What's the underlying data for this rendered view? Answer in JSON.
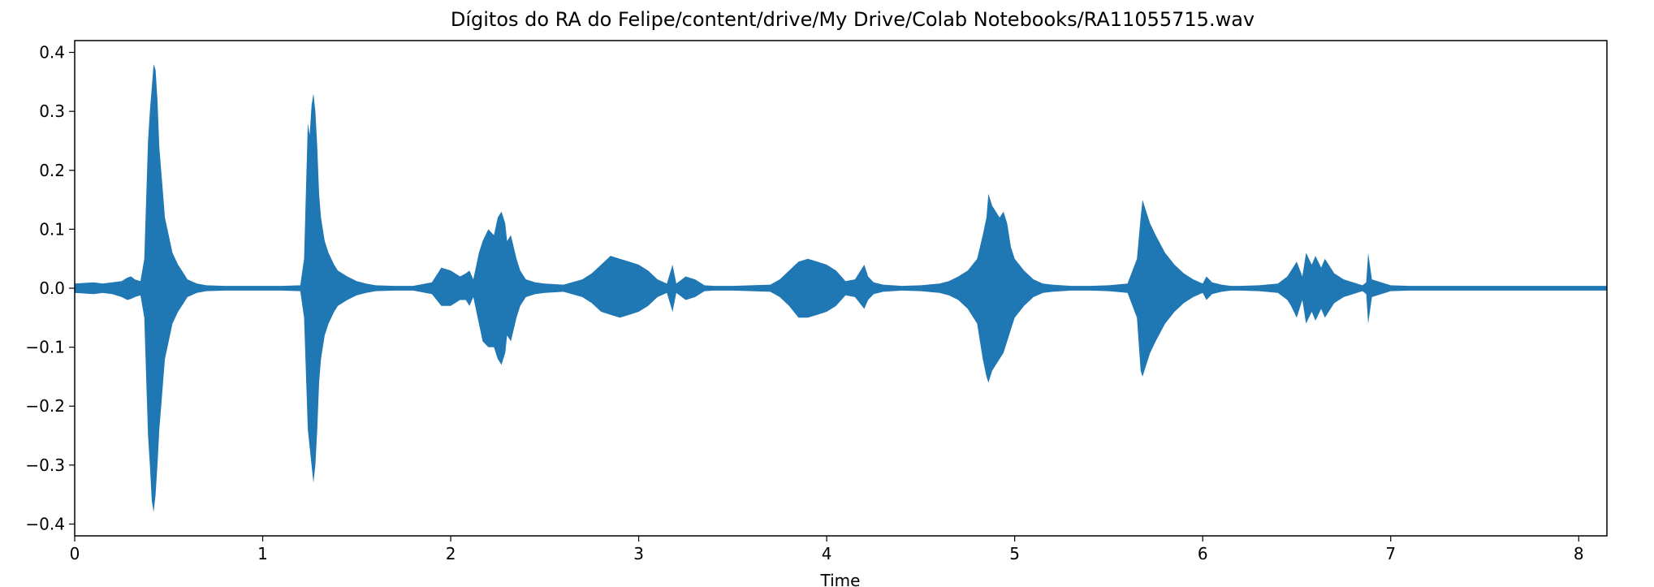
{
  "chart_data": {
    "type": "area",
    "title": "Dígitos do RA do Felipe/content/drive/My Drive/Colab Notebooks/RA11055715.wav",
    "xlabel": "Time",
    "ylabel": "",
    "xlim": [
      0,
      8.15
    ],
    "ylim": [
      -0.42,
      0.42
    ],
    "grid": false,
    "color": "#1f77b4",
    "xticks": [
      {
        "value": 0,
        "label": "0"
      },
      {
        "value": 1,
        "label": "1"
      },
      {
        "value": 2,
        "label": "2"
      },
      {
        "value": 3,
        "label": "3"
      },
      {
        "value": 4,
        "label": "4"
      },
      {
        "value": 5,
        "label": "5"
      },
      {
        "value": 6,
        "label": "6"
      },
      {
        "value": 7,
        "label": "7"
      },
      {
        "value": 8,
        "label": "8"
      }
    ],
    "yticks": [
      {
        "value": 0.4,
        "label": "0.4"
      },
      {
        "value": 0.3,
        "label": "0.3"
      },
      {
        "value": 0.2,
        "label": "0.2"
      },
      {
        "value": 0.1,
        "label": "0.1"
      },
      {
        "value": 0.0,
        "label": "0.0"
      },
      {
        "value": -0.1,
        "label": "−0.1"
      },
      {
        "value": -0.2,
        "label": "−0.2"
      },
      {
        "value": -0.3,
        "label": "−0.3"
      },
      {
        "value": -0.4,
        "label": "−0.4"
      }
    ],
    "series": [
      {
        "x": [
          0,
          0.05,
          0.1,
          0.15,
          0.2,
          0.25,
          0.28,
          0.3,
          0.32,
          0.35,
          0.37,
          0.38,
          0.39,
          0.4,
          0.41,
          0.42,
          0.43,
          0.44,
          0.45,
          0.46,
          0.47,
          0.48,
          0.5,
          0.52,
          0.55,
          0.58,
          0.6,
          0.65,
          0.7,
          0.8,
          0.9,
          1.0,
          1.1,
          1.2,
          1.22,
          1.24,
          1.25,
          1.26,
          1.27,
          1.28,
          1.29,
          1.3,
          1.31,
          1.32,
          1.33,
          1.35,
          1.38,
          1.4,
          1.45,
          1.5,
          1.55,
          1.6,
          1.7,
          1.8,
          1.9,
          1.95,
          2.0,
          2.05,
          2.08,
          2.1,
          2.12,
          2.15,
          2.17,
          2.2,
          2.23,
          2.25,
          2.27,
          2.29,
          2.3,
          2.32,
          2.35,
          2.37,
          2.4,
          2.45,
          2.5,
          2.6,
          2.7,
          2.75,
          2.8,
          2.85,
          2.9,
          2.95,
          3.0,
          3.05,
          3.1,
          3.15,
          3.18,
          3.2,
          3.25,
          3.3,
          3.35,
          3.4,
          3.5,
          3.6,
          3.7,
          3.75,
          3.8,
          3.85,
          3.9,
          3.95,
          4.0,
          4.05,
          4.1,
          4.15,
          4.2,
          4.22,
          4.25,
          4.3,
          4.4,
          4.5,
          4.6,
          4.65,
          4.7,
          4.75,
          4.8,
          4.83,
          4.85,
          4.86,
          4.88,
          4.9,
          4.92,
          4.94,
          4.96,
          4.98,
          5.0,
          5.05,
          5.1,
          5.15,
          5.2,
          5.3,
          5.4,
          5.5,
          5.6,
          5.65,
          5.67,
          5.68,
          5.7,
          5.72,
          5.75,
          5.8,
          5.85,
          5.9,
          5.95,
          6.0,
          6.02,
          6.05,
          6.1,
          6.15,
          6.2,
          6.3,
          6.4,
          6.45,
          6.47,
          6.5,
          6.53,
          6.55,
          6.58,
          6.6,
          6.63,
          6.65,
          6.7,
          6.75,
          6.8,
          6.85,
          6.87,
          6.88,
          6.9,
          6.95,
          7.0,
          7.1,
          7.2,
          7.3,
          7.4,
          7.5,
          7.6,
          7.7,
          7.8,
          7.9,
          8.0,
          8.1,
          8.15
        ],
        "y_max": [
          0.008,
          0.009,
          0.01,
          0.008,
          0.01,
          0.012,
          0.018,
          0.02,
          0.015,
          0.012,
          0.05,
          0.15,
          0.25,
          0.3,
          0.34,
          0.38,
          0.37,
          0.32,
          0.24,
          0.2,
          0.16,
          0.12,
          0.09,
          0.06,
          0.04,
          0.025,
          0.015,
          0.008,
          0.005,
          0.004,
          0.004,
          0.004,
          0.004,
          0.005,
          0.05,
          0.28,
          0.26,
          0.31,
          0.33,
          0.3,
          0.24,
          0.16,
          0.12,
          0.1,
          0.08,
          0.06,
          0.04,
          0.03,
          0.02,
          0.012,
          0.008,
          0.005,
          0.004,
          0.004,
          0.01,
          0.035,
          0.03,
          0.02,
          0.025,
          0.03,
          0.015,
          0.06,
          0.08,
          0.1,
          0.09,
          0.12,
          0.13,
          0.11,
          0.08,
          0.09,
          0.05,
          0.03,
          0.015,
          0.01,
          0.008,
          0.006,
          0.015,
          0.025,
          0.04,
          0.055,
          0.05,
          0.045,
          0.04,
          0.03,
          0.015,
          0.008,
          0.04,
          0.008,
          0.02,
          0.015,
          0.005,
          0.004,
          0.004,
          0.005,
          0.006,
          0.015,
          0.03,
          0.045,
          0.05,
          0.045,
          0.04,
          0.03,
          0.012,
          0.015,
          0.04,
          0.02,
          0.01,
          0.006,
          0.004,
          0.005,
          0.008,
          0.012,
          0.02,
          0.03,
          0.05,
          0.09,
          0.12,
          0.16,
          0.14,
          0.13,
          0.12,
          0.13,
          0.11,
          0.07,
          0.05,
          0.03,
          0.015,
          0.008,
          0.006,
          0.004,
          0.004,
          0.005,
          0.008,
          0.05,
          0.12,
          0.15,
          0.13,
          0.11,
          0.09,
          0.06,
          0.04,
          0.025,
          0.015,
          0.008,
          0.02,
          0.01,
          0.006,
          0.004,
          0.004,
          0.005,
          0.008,
          0.02,
          0.03,
          0.045,
          0.02,
          0.06,
          0.04,
          0.055,
          0.035,
          0.05,
          0.025,
          0.015,
          0.01,
          0.005,
          0.01,
          0.06,
          0.015,
          0.01,
          0.005,
          0.004,
          0.004,
          0.004,
          0.004,
          0.004,
          0.004,
          0.004,
          0.004,
          0.004,
          0.004,
          0.004,
          0.004,
          0.003
        ],
        "y_min": [
          -0.008,
          -0.009,
          -0.01,
          -0.008,
          -0.01,
          -0.015,
          -0.02,
          -0.018,
          -0.015,
          -0.012,
          -0.05,
          -0.15,
          -0.25,
          -0.3,
          -0.36,
          -0.38,
          -0.35,
          -0.3,
          -0.24,
          -0.2,
          -0.16,
          -0.12,
          -0.09,
          -0.06,
          -0.04,
          -0.025,
          -0.015,
          -0.008,
          -0.005,
          -0.004,
          -0.004,
          -0.004,
          -0.004,
          -0.005,
          -0.05,
          -0.24,
          -0.27,
          -0.3,
          -0.33,
          -0.3,
          -0.24,
          -0.16,
          -0.12,
          -0.1,
          -0.08,
          -0.06,
          -0.04,
          -0.03,
          -0.02,
          -0.012,
          -0.008,
          -0.005,
          -0.004,
          -0.004,
          -0.01,
          -0.03,
          -0.03,
          -0.02,
          -0.02,
          -0.03,
          -0.015,
          -0.06,
          -0.09,
          -0.1,
          -0.1,
          -0.12,
          -0.13,
          -0.11,
          -0.08,
          -0.09,
          -0.05,
          -0.03,
          -0.015,
          -0.01,
          -0.008,
          -0.006,
          -0.015,
          -0.025,
          -0.04,
          -0.045,
          -0.05,
          -0.045,
          -0.04,
          -0.03,
          -0.015,
          -0.008,
          -0.04,
          -0.008,
          -0.02,
          -0.015,
          -0.005,
          -0.004,
          -0.004,
          -0.005,
          -0.006,
          -0.015,
          -0.03,
          -0.05,
          -0.05,
          -0.045,
          -0.04,
          -0.03,
          -0.012,
          -0.015,
          -0.035,
          -0.02,
          -0.01,
          -0.006,
          -0.004,
          -0.005,
          -0.008,
          -0.012,
          -0.02,
          -0.035,
          -0.06,
          -0.12,
          -0.15,
          -0.16,
          -0.14,
          -0.13,
          -0.12,
          -0.11,
          -0.09,
          -0.07,
          -0.05,
          -0.03,
          -0.015,
          -0.008,
          -0.006,
          -0.004,
          -0.004,
          -0.005,
          -0.008,
          -0.05,
          -0.14,
          -0.15,
          -0.13,
          -0.11,
          -0.09,
          -0.06,
          -0.04,
          -0.025,
          -0.015,
          -0.008,
          -0.02,
          -0.01,
          -0.006,
          -0.004,
          -0.004,
          -0.005,
          -0.008,
          -0.02,
          -0.03,
          -0.05,
          -0.02,
          -0.06,
          -0.04,
          -0.055,
          -0.035,
          -0.05,
          -0.025,
          -0.015,
          -0.01,
          -0.005,
          -0.01,
          -0.06,
          -0.015,
          -0.01,
          -0.005,
          -0.004,
          -0.004,
          -0.004,
          -0.004,
          -0.004,
          -0.004,
          -0.004,
          -0.004,
          -0.004,
          -0.004,
          -0.004,
          -0.004,
          -0.003
        ]
      }
    ]
  }
}
